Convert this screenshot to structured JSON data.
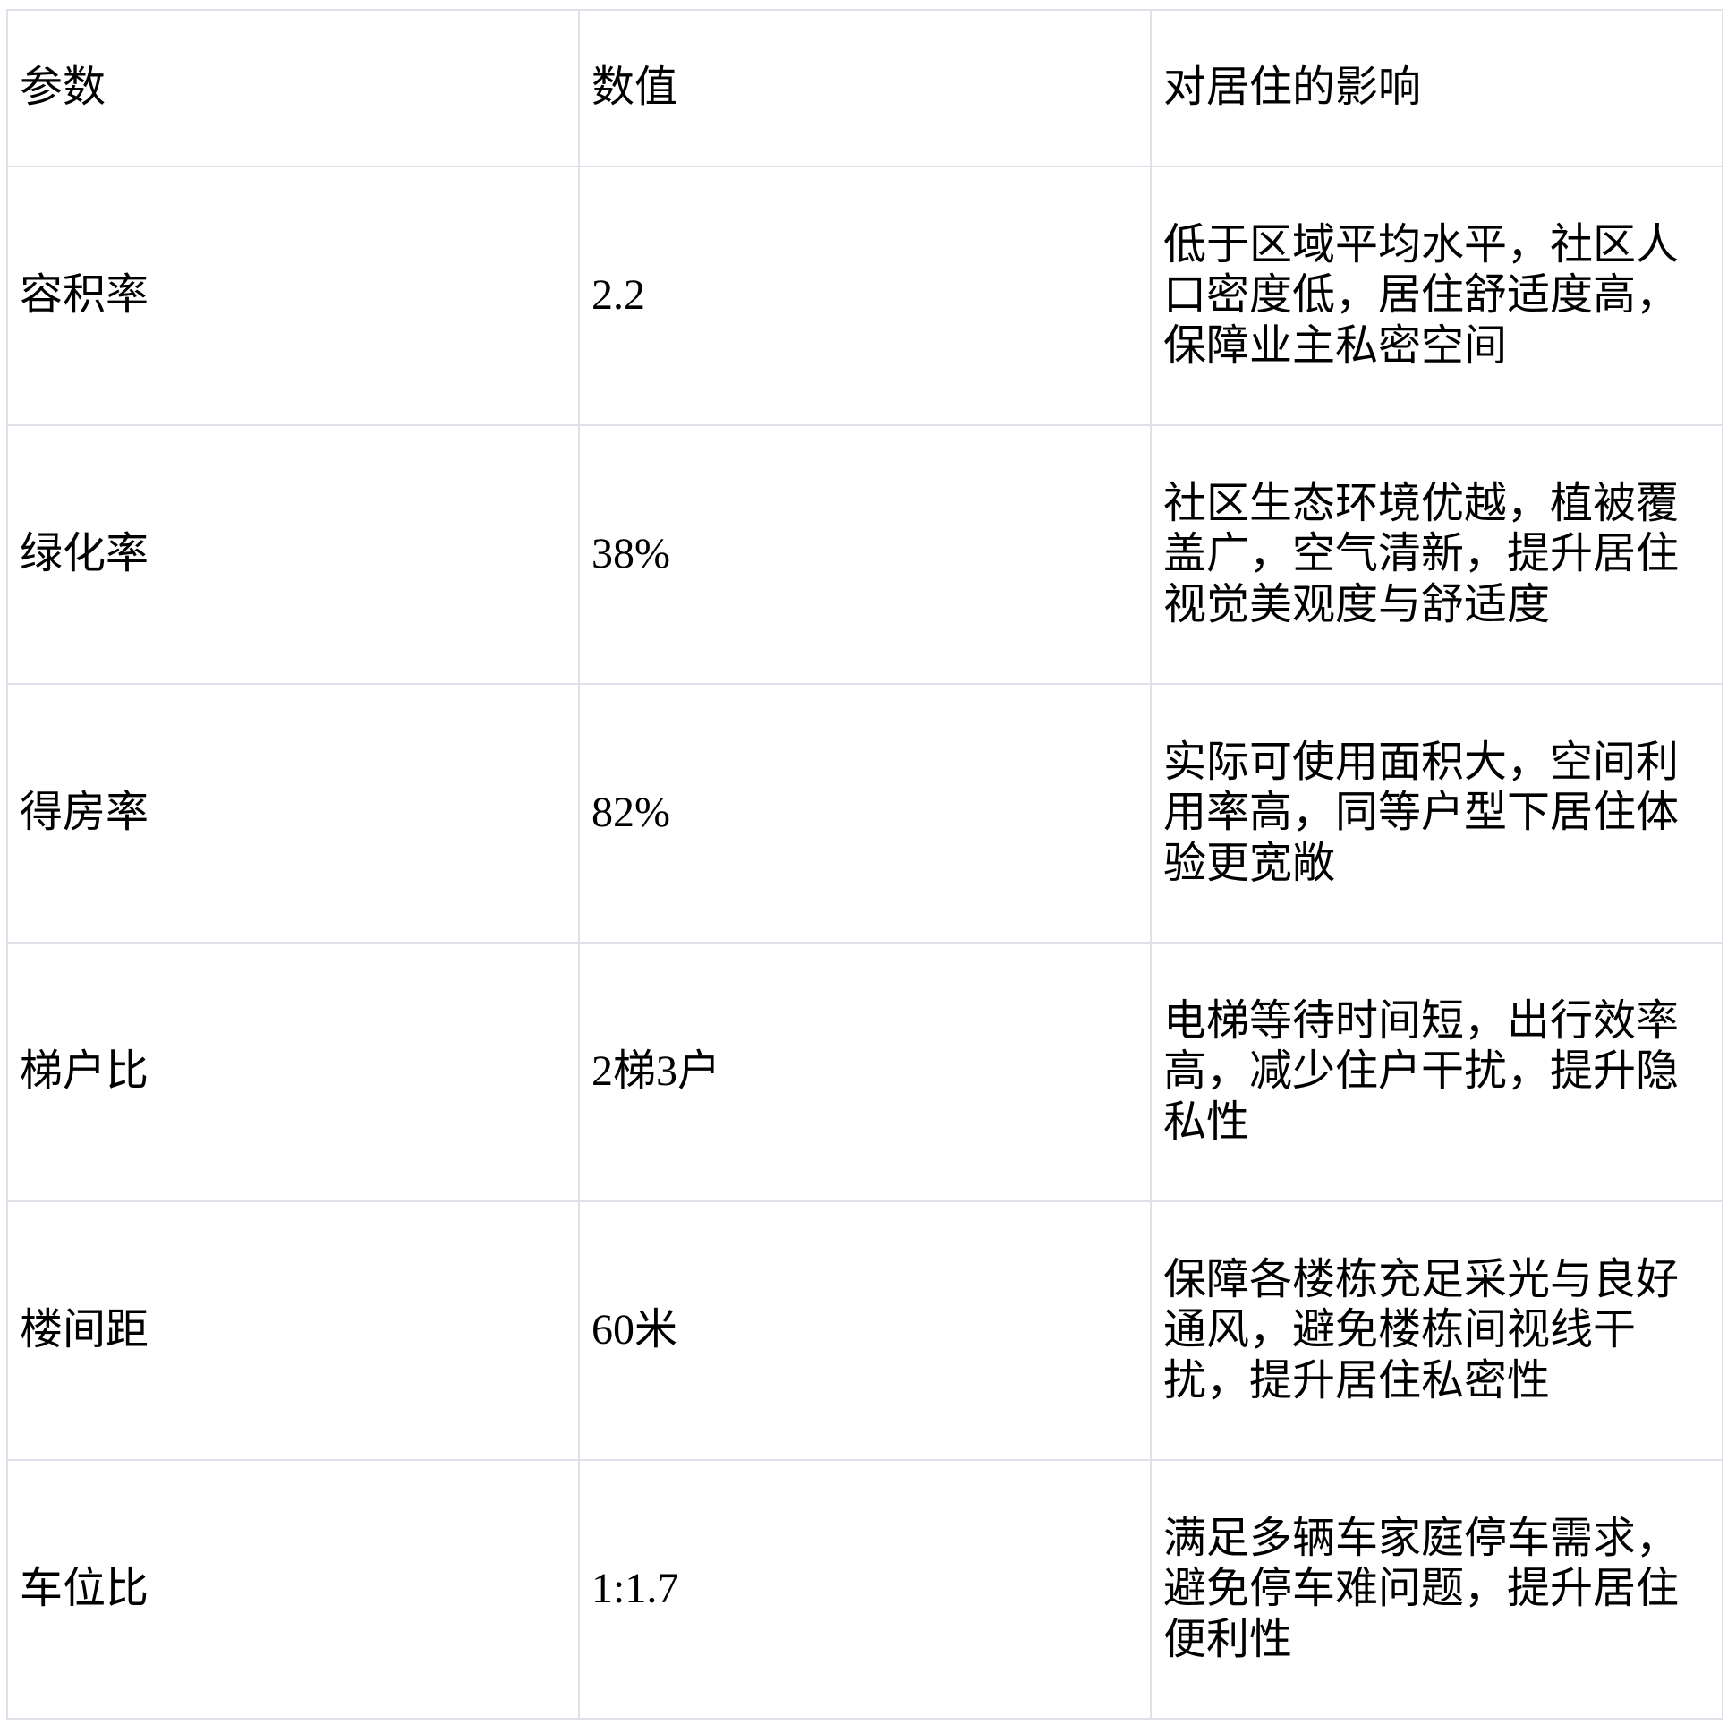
{
  "table": {
    "headers": {
      "param": "参数",
      "value": "数值",
      "impact": "对居住的影响"
    },
    "rows": [
      {
        "param": "容积率",
        "value": "2.2",
        "impact": "低于区域平均水平，社区人口密度低，居住舒适度高，保障业主私密空间"
      },
      {
        "param": "绿化率",
        "value": "38%",
        "impact": "社区生态环境优越，植被覆盖广，空气清新，提升居住视觉美观度与舒适度"
      },
      {
        "param": "得房率",
        "value": "82%",
        "impact": "实际可使用面积大，空间利用率高，同等户型下居住体验更宽敞"
      },
      {
        "param": "梯户比",
        "value": "2梯3户",
        "impact": "电梯等待时间短，出行效率高，减少住户干扰，提升隐私性"
      },
      {
        "param": "楼间距",
        "value": "60米",
        "impact": "保障各楼栋充足采光与良好通风，避免楼栋间视线干扰，提升居住私密性"
      },
      {
        "param": "车位比",
        "value": "1:1.7",
        "impact": "满足多辆车家庭停车需求，避免停车难问题，提升居住便利性"
      }
    ],
    "colors": {
      "border": "#e0e1e8",
      "text": "#000000",
      "background": "#ffffff"
    }
  }
}
